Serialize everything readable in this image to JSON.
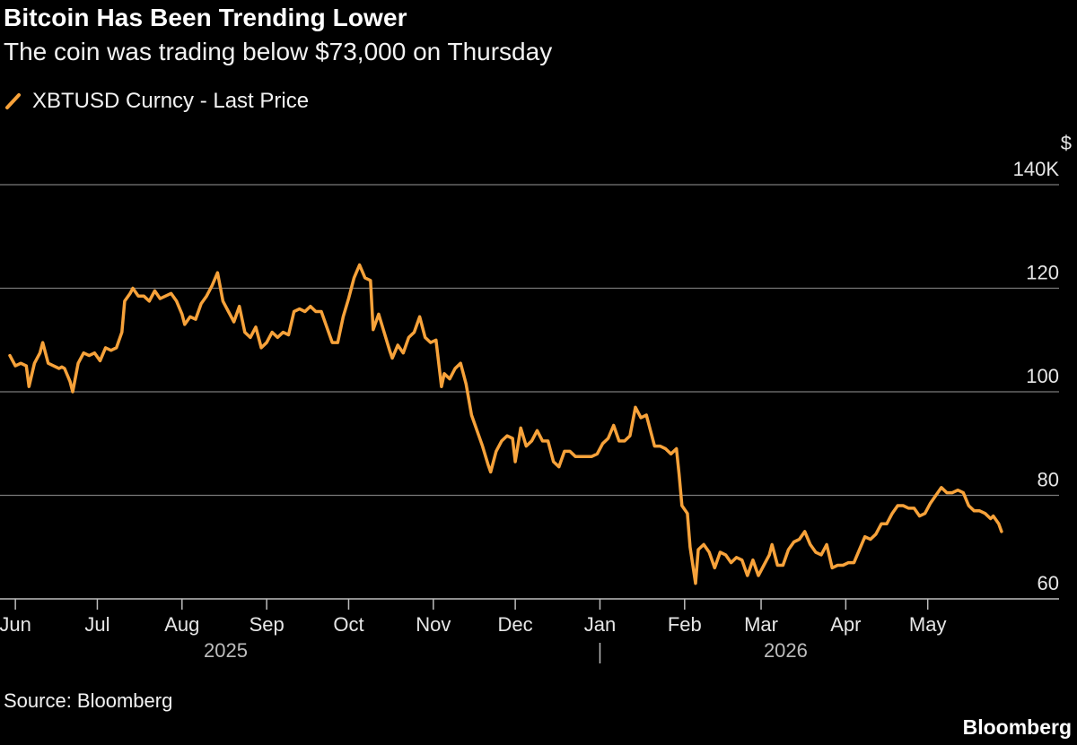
{
  "title": "Bitcoin Has Been Trending Lower",
  "subtitle": "The coin was trading below $73,000 on Thursday",
  "source": "Source: Bloomberg",
  "logo": "Bloomberg",
  "colors": {
    "series": "#f7a23a",
    "background": "#000000",
    "grid": "#7a7a7a"
  },
  "legend_icon": "diagonal-line-icon",
  "chart_data": {
    "type": "line",
    "title": "Bitcoin Has Been Trending Lower",
    "subtitle": "The coin was trading below $73,000 on Thursday",
    "ylabel": "$",
    "ylim": [
      60,
      140
    ],
    "yticks": [
      {
        "value": 60,
        "label": "60"
      },
      {
        "value": 80,
        "label": "80"
      },
      {
        "value": 100,
        "label": "100"
      },
      {
        "value": 120,
        "label": "120"
      },
      {
        "value": 140,
        "label": "140K"
      }
    ],
    "y_unit_label": "$",
    "xlim": [
      "2025-05-29",
      "2026-05-31"
    ],
    "xticks": [
      {
        "date": "2025-06-01",
        "label": "Jun"
      },
      {
        "date": "2025-07-01",
        "label": "Jul"
      },
      {
        "date": "2025-08-01",
        "label": "Aug"
      },
      {
        "date": "2025-09-01",
        "label": "Sep"
      },
      {
        "date": "2025-10-01",
        "label": "Oct"
      },
      {
        "date": "2025-11-01",
        "label": "Nov"
      },
      {
        "date": "2025-12-01",
        "label": "Dec"
      },
      {
        "date": "2026-01-01",
        "label": "Jan"
      },
      {
        "date": "2026-02-01",
        "label": "Feb"
      },
      {
        "date": "2026-03-01",
        "label": "Mar"
      },
      {
        "date": "2026-04-01",
        "label": "Apr"
      },
      {
        "date": "2026-05-01",
        "label": "May"
      }
    ],
    "year_labels": [
      {
        "date": "2025-08-17",
        "label": "2025"
      },
      {
        "date": "2026-03-10",
        "label": "2026"
      }
    ],
    "year_divider": "2026-01-01",
    "grid": true,
    "legend_position": "top-left",
    "series": [
      {
        "name": "XBTUSD Curncy - Last Price",
        "points": [
          [
            "2025-05-30",
            107
          ],
          [
            "2025-06-01",
            105
          ],
          [
            "2025-06-03",
            105.5
          ],
          [
            "2025-06-05",
            105
          ],
          [
            "2025-06-06",
            101
          ],
          [
            "2025-06-08",
            105.5
          ],
          [
            "2025-06-10",
            107.5
          ],
          [
            "2025-06-11",
            109.5
          ],
          [
            "2025-06-13",
            105.5
          ],
          [
            "2025-06-15",
            105
          ],
          [
            "2025-06-17",
            104.5
          ],
          [
            "2025-06-18",
            104.8
          ],
          [
            "2025-06-19",
            104.5
          ],
          [
            "2025-06-21",
            102
          ],
          [
            "2025-06-22",
            100
          ],
          [
            "2025-06-24",
            105.5
          ],
          [
            "2025-06-26",
            107.5
          ],
          [
            "2025-06-28",
            107
          ],
          [
            "2025-06-30",
            107.5
          ],
          [
            "2025-07-02",
            106
          ],
          [
            "2025-07-04",
            108.5
          ],
          [
            "2025-07-06",
            108
          ],
          [
            "2025-07-08",
            108.5
          ],
          [
            "2025-07-10",
            111.5
          ],
          [
            "2025-07-11",
            117.5
          ],
          [
            "2025-07-13",
            119
          ],
          [
            "2025-07-14",
            120
          ],
          [
            "2025-07-16",
            118.5
          ],
          [
            "2025-07-18",
            118.5
          ],
          [
            "2025-07-20",
            117.5
          ],
          [
            "2025-07-22",
            119.5
          ],
          [
            "2025-07-24",
            118
          ],
          [
            "2025-07-26",
            118.5
          ],
          [
            "2025-07-28",
            119
          ],
          [
            "2025-07-30",
            117.5
          ],
          [
            "2025-08-01",
            115
          ],
          [
            "2025-08-02",
            113
          ],
          [
            "2025-08-04",
            114.5
          ],
          [
            "2025-08-06",
            114
          ],
          [
            "2025-08-08",
            117
          ],
          [
            "2025-08-10",
            118.5
          ],
          [
            "2025-08-12",
            120.5
          ],
          [
            "2025-08-14",
            123
          ],
          [
            "2025-08-16",
            117.5
          ],
          [
            "2025-08-18",
            115.5
          ],
          [
            "2025-08-20",
            113.5
          ],
          [
            "2025-08-22",
            116.5
          ],
          [
            "2025-08-24",
            111.5
          ],
          [
            "2025-08-26",
            110.5
          ],
          [
            "2025-08-28",
            112.5
          ],
          [
            "2025-08-30",
            108.5
          ],
          [
            "2025-09-01",
            109.5
          ],
          [
            "2025-09-03",
            111.5
          ],
          [
            "2025-09-05",
            110.5
          ],
          [
            "2025-09-07",
            111.5
          ],
          [
            "2025-09-09",
            111
          ],
          [
            "2025-09-11",
            115.5
          ],
          [
            "2025-09-13",
            116
          ],
          [
            "2025-09-15",
            115.5
          ],
          [
            "2025-09-17",
            116.5
          ],
          [
            "2025-09-19",
            115.5
          ],
          [
            "2025-09-21",
            115.5
          ],
          [
            "2025-09-23",
            112.5
          ],
          [
            "2025-09-25",
            109.5
          ],
          [
            "2025-09-27",
            109.5
          ],
          [
            "2025-09-29",
            114.5
          ],
          [
            "2025-10-01",
            118
          ],
          [
            "2025-10-03",
            122
          ],
          [
            "2025-10-05",
            124.5
          ],
          [
            "2025-10-07",
            122
          ],
          [
            "2025-10-09",
            121.5
          ],
          [
            "2025-10-10",
            112
          ],
          [
            "2025-10-12",
            115
          ],
          [
            "2025-10-14",
            111.5
          ],
          [
            "2025-10-16",
            108
          ],
          [
            "2025-10-17",
            106.5
          ],
          [
            "2025-10-19",
            109
          ],
          [
            "2025-10-21",
            107.5
          ],
          [
            "2025-10-23",
            110.5
          ],
          [
            "2025-10-25",
            111.5
          ],
          [
            "2025-10-27",
            114.5
          ],
          [
            "2025-10-29",
            110.5
          ],
          [
            "2025-10-31",
            109.5
          ],
          [
            "2025-11-02",
            110
          ],
          [
            "2025-11-04",
            101
          ],
          [
            "2025-11-05",
            103.5
          ],
          [
            "2025-11-07",
            102.5
          ],
          [
            "2025-11-09",
            104.5
          ],
          [
            "2025-11-11",
            105.5
          ],
          [
            "2025-11-13",
            101.5
          ],
          [
            "2025-11-15",
            95.5
          ],
          [
            "2025-11-17",
            92.5
          ],
          [
            "2025-11-19",
            89.5
          ],
          [
            "2025-11-21",
            86
          ],
          [
            "2025-11-22",
            84.5
          ],
          [
            "2025-11-24",
            88.5
          ],
          [
            "2025-11-26",
            90.5
          ],
          [
            "2025-11-28",
            91.5
          ],
          [
            "2025-11-30",
            91
          ],
          [
            "2025-12-01",
            86.5
          ],
          [
            "2025-12-03",
            93
          ],
          [
            "2025-12-05",
            89.5
          ],
          [
            "2025-12-07",
            90.5
          ],
          [
            "2025-12-09",
            92.5
          ],
          [
            "2025-12-11",
            90.5
          ],
          [
            "2025-12-13",
            90.5
          ],
          [
            "2025-12-15",
            86.5
          ],
          [
            "2025-12-17",
            85.5
          ],
          [
            "2025-12-19",
            88.5
          ],
          [
            "2025-12-21",
            88.5
          ],
          [
            "2025-12-23",
            87.5
          ],
          [
            "2025-12-25",
            87.5
          ],
          [
            "2025-12-27",
            87.5
          ],
          [
            "2025-12-29",
            87.5
          ],
          [
            "2025-12-31",
            88
          ],
          [
            "2026-01-02",
            90
          ],
          [
            "2026-01-04",
            91
          ],
          [
            "2026-01-06",
            93.5
          ],
          [
            "2026-01-08",
            90.5
          ],
          [
            "2026-01-10",
            90.5
          ],
          [
            "2026-01-12",
            91.5
          ],
          [
            "2026-01-14",
            97
          ],
          [
            "2026-01-16",
            95
          ],
          [
            "2026-01-18",
            95.5
          ],
          [
            "2026-01-20",
            91.5
          ],
          [
            "2026-01-21",
            89.5
          ],
          [
            "2026-01-23",
            89.5
          ],
          [
            "2026-01-25",
            89
          ],
          [
            "2026-01-27",
            88
          ],
          [
            "2026-01-29",
            89
          ],
          [
            "2026-01-30",
            84
          ],
          [
            "2026-01-31",
            78
          ],
          [
            "2026-02-02",
            76.5
          ],
          [
            "2026-02-03",
            70
          ],
          [
            "2026-02-05",
            63
          ],
          [
            "2026-02-06",
            69.5
          ],
          [
            "2026-02-08",
            70.5
          ],
          [
            "2026-02-10",
            69
          ],
          [
            "2026-02-12",
            66
          ],
          [
            "2026-02-14",
            69
          ],
          [
            "2026-02-16",
            68.5
          ],
          [
            "2026-02-18",
            67
          ],
          [
            "2026-02-20",
            68
          ],
          [
            "2026-02-22",
            67.5
          ],
          [
            "2026-02-24",
            64.5
          ],
          [
            "2026-02-26",
            67.5
          ],
          [
            "2026-02-28",
            64.5
          ],
          [
            "2026-03-02",
            66.5
          ],
          [
            "2026-03-04",
            68.5
          ],
          [
            "2026-03-05",
            70.5
          ],
          [
            "2026-03-07",
            66.5
          ],
          [
            "2026-03-09",
            66.5
          ],
          [
            "2026-03-11",
            69.5
          ],
          [
            "2026-03-13",
            71
          ],
          [
            "2026-03-15",
            71.5
          ],
          [
            "2026-03-17",
            73
          ],
          [
            "2026-03-19",
            70.5
          ],
          [
            "2026-03-21",
            69
          ],
          [
            "2026-03-23",
            68.5
          ],
          [
            "2026-03-25",
            70.5
          ],
          [
            "2026-03-27",
            66
          ],
          [
            "2026-03-29",
            66.5
          ],
          [
            "2026-03-31",
            66.5
          ],
          [
            "2026-04-02",
            67
          ],
          [
            "2026-04-04",
            67
          ],
          [
            "2026-04-06",
            69.5
          ],
          [
            "2026-04-08",
            72
          ],
          [
            "2026-04-10",
            71.5
          ],
          [
            "2026-04-12",
            72.5
          ],
          [
            "2026-04-14",
            74.5
          ],
          [
            "2026-04-16",
            74.5
          ],
          [
            "2026-04-18",
            76.5
          ],
          [
            "2026-04-20",
            78
          ],
          [
            "2026-04-22",
            78
          ],
          [
            "2026-04-24",
            77.5
          ],
          [
            "2026-04-26",
            77.5
          ],
          [
            "2026-04-28",
            76
          ],
          [
            "2026-04-30",
            76.5
          ],
          [
            "2026-05-02",
            78.5
          ],
          [
            "2026-05-04",
            80
          ],
          [
            "2026-05-06",
            81.5
          ],
          [
            "2026-05-08",
            80.5
          ],
          [
            "2026-05-10",
            80.5
          ],
          [
            "2026-05-12",
            81
          ],
          [
            "2026-05-14",
            80.5
          ],
          [
            "2026-05-16",
            78
          ],
          [
            "2026-05-18",
            77
          ],
          [
            "2026-05-20",
            77
          ],
          [
            "2026-05-22",
            76.5
          ],
          [
            "2026-05-24",
            75.5
          ],
          [
            "2026-05-25",
            76
          ],
          [
            "2026-05-27",
            74.5
          ],
          [
            "2026-05-28",
            73
          ]
        ]
      }
    ]
  }
}
